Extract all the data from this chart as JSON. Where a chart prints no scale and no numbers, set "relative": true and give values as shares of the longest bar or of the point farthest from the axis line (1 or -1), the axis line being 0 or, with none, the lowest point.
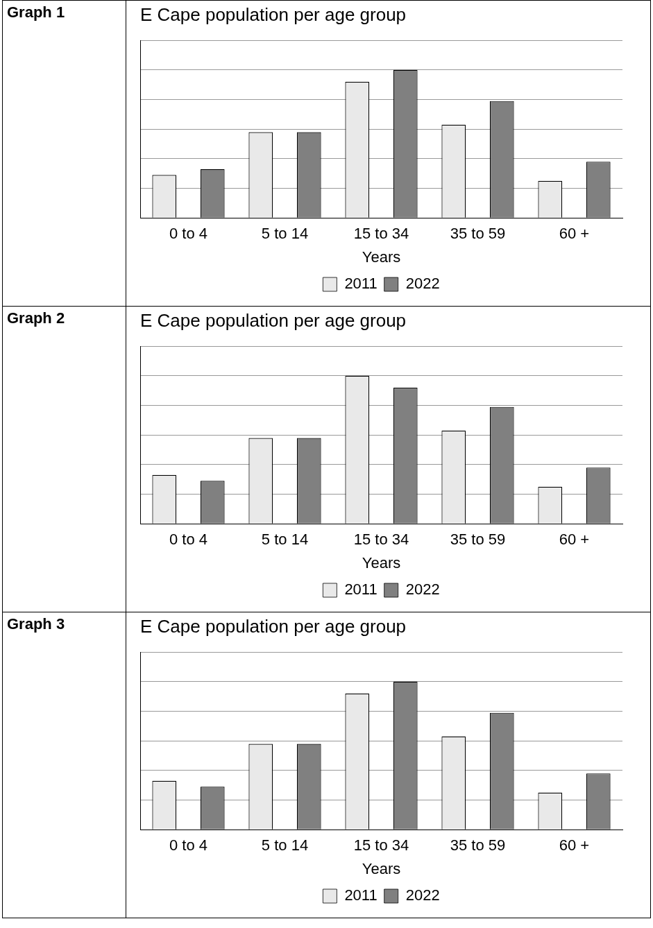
{
  "chart_data": [
    {
      "type": "bar",
      "title": "E Cape population per age group",
      "xlabel": "Years",
      "annotations": [
        "Graph 1"
      ],
      "relative": true,
      "grid": "y",
      "legend": "bottom",
      "categories": [
        "0 to 4",
        "5 to 14",
        "15 to 34",
        "35 to 59",
        "60 +"
      ],
      "series": [
        {
          "name": "2011",
          "color": "#e9e9e9",
          "values": [
            0.29,
            0.58,
            0.92,
            0.63,
            0.25
          ]
        },
        {
          "name": "2022",
          "color": "#808080",
          "values": [
            0.33,
            0.58,
            1,
            0.79,
            0.38
          ]
        }
      ]
    },
    {
      "type": "bar",
      "title": "E Cape population per age group",
      "xlabel": "Years",
      "annotations": [
        "Graph 2"
      ],
      "relative": true,
      "grid": "y",
      "legend": "bottom",
      "categories": [
        "0 to 4",
        "5 to 14",
        "15 to 34",
        "35 to 59",
        "60 +"
      ],
      "series": [
        {
          "name": "2011",
          "color": "#e9e9e9",
          "values": [
            0.33,
            0.58,
            1,
            0.63,
            0.25
          ]
        },
        {
          "name": "2022",
          "color": "#808080",
          "values": [
            0.29,
            0.58,
            0.92,
            0.79,
            0.38
          ]
        }
      ]
    },
    {
      "type": "bar",
      "title": "E Cape population per age group",
      "xlabel": "Years",
      "annotations": [
        "Graph 3"
      ],
      "relative": true,
      "grid": "y",
      "legend": "bottom",
      "categories": [
        "0 to 4",
        "5 to 14",
        "15 to 34",
        "35 to 59",
        "60 +"
      ],
      "series": [
        {
          "name": "2011",
          "color": "#e9e9e9",
          "values": [
            0.33,
            0.58,
            0.92,
            0.63,
            0.25
          ]
        },
        {
          "name": "2022",
          "color": "#808080",
          "values": [
            0.29,
            0.58,
            1,
            0.79,
            0.38
          ]
        }
      ]
    }
  ]
}
